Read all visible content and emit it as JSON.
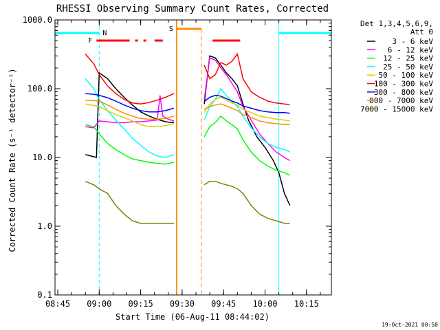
{
  "chart_data": {
    "type": "line",
    "title": "RHESSI Observing Summary Count Rates, Corrected",
    "xlabel": "Start Time (06-Aug-11 08:44:02)",
    "ylabel": "Corrected Count Rate (s⁻¹ detector⁻¹)",
    "y_scale": "log",
    "ylim": [
      0.1,
      1000.0
    ],
    "xlim": [
      "08:44",
      "10:24"
    ],
    "x_ticks": [
      "08:45",
      "09:00",
      "09:15",
      "09:30",
      "09:45",
      "10:00",
      "10:15"
    ],
    "y_ticks": [
      "0.1",
      "1.0",
      "10.0",
      "100.0",
      "1000.0"
    ],
    "legend": {
      "position": "top-right",
      "header": [
        "Det 1,3,4,5,6,9,",
        "Att 0"
      ]
    },
    "timestamp": "19-Oct-2021 00:50",
    "annotations": {
      "night": {
        "label": "N",
        "color": "#00ffff",
        "intervals": [
          [
            "08:44",
            "09:00"
          ],
          [
            "10:05",
            "10:24"
          ]
        ]
      },
      "saa": {
        "label": "S",
        "color": "#ff8c00",
        "interval": [
          "09:28",
          "09:37"
        ]
      },
      "flare": {
        "label": "F",
        "color": "#ff0000",
        "intervals": [
          [
            "08:59",
            "09:11"
          ],
          [
            "09:13",
            "09:14"
          ],
          [
            "09:16",
            "09:17"
          ],
          [
            "09:20",
            "09:23"
          ],
          [
            "09:41",
            "09:51"
          ]
        ]
      }
    },
    "series": [
      {
        "name": "3 - 6 keV",
        "color": "#000000",
        "x": [
          "08:55",
          "08:57",
          "08:59",
          "09:00",
          "09:03",
          "09:06",
          "09:09",
          "09:12",
          "09:15",
          "09:18",
          "09:21",
          "09:24",
          "09:27",
          "09:38",
          "09:40",
          "09:42",
          "09:44",
          "09:46",
          "09:48",
          "09:50",
          "09:52",
          "09:54",
          "09:57",
          "10:00",
          "10:03",
          "10:05",
          "10:07",
          "10:09"
        ],
        "y": [
          11,
          10.5,
          10,
          170,
          140,
          100,
          75,
          58,
          46,
          40,
          36,
          33,
          32,
          60,
          300,
          280,
          220,
          170,
          140,
          110,
          60,
          35,
          20,
          14,
          9,
          6,
          3,
          2
        ]
      },
      {
        "name": "6 - 12 keV",
        "color": "#ff00ff",
        "x": [
          "08:55",
          "08:58",
          "09:00",
          "09:03",
          "09:06",
          "09:09",
          "09:12",
          "09:15",
          "09:18",
          "09:21",
          "09:22",
          "09:23",
          "09:25",
          "09:27",
          "09:38",
          "09:40",
          "09:42",
          "09:44",
          "09:46",
          "09:48",
          "09:50",
          "09:52",
          "09:55",
          "09:58",
          "10:01",
          "10:04",
          "10:07",
          "10:09"
        ],
        "y": [
          28,
          27,
          34,
          33,
          32,
          32,
          33,
          33,
          34,
          35,
          80,
          40,
          36,
          34,
          70,
          280,
          260,
          200,
          160,
          120,
          90,
          55,
          35,
          22,
          16,
          12,
          10,
          9
        ]
      },
      {
        "name": "12 - 25 keV",
        "color": "#00ff00",
        "x": [
          "08:55",
          "08:58",
          "09:00",
          "09:03",
          "09:06",
          "09:09",
          "09:12",
          "09:15",
          "09:18",
          "09:21",
          "09:24",
          "09:27",
          "09:38",
          "09:40",
          "09:42",
          "09:44",
          "09:46",
          "09:48",
          "09:50",
          "09:52",
          "09:55",
          "09:58",
          "10:01",
          "10:04",
          "10:07",
          "10:09"
        ],
        "y": [
          30,
          28,
          22,
          16,
          13,
          11,
          9.5,
          9,
          8.5,
          8.2,
          8,
          8.5,
          20,
          28,
          32,
          40,
          34,
          30,
          26,
          18,
          12,
          9,
          7.5,
          6.5,
          6,
          5.5
        ]
      },
      {
        "name": "25 - 50 keV",
        "color": "#00ffff",
        "x": [
          "08:55",
          "08:58",
          "09:00",
          "09:03",
          "09:06",
          "09:09",
          "09:12",
          "09:15",
          "09:18",
          "09:21",
          "09:24",
          "09:27",
          "09:38",
          "09:40",
          "09:42",
          "09:44",
          "09:46",
          "09:48",
          "09:50",
          "09:52",
          "09:55",
          "09:58",
          "10:01",
          "10:04",
          "10:07",
          "10:09"
        ],
        "y": [
          140,
          100,
          70,
          48,
          35,
          26,
          19,
          15,
          12,
          10.5,
          10,
          11,
          35,
          55,
          70,
          100,
          80,
          65,
          55,
          40,
          27,
          20,
          16,
          14,
          13,
          12
        ]
      },
      {
        "name": "50 - 100 keV",
        "color": "#d4d400",
        "x": [
          "08:55",
          "08:58",
          "09:00",
          "09:03",
          "09:06",
          "09:09",
          "09:12",
          "09:15",
          "09:18",
          "09:21",
          "09:24",
          "09:27",
          "09:38",
          "09:40",
          "09:42",
          "09:44",
          "09:46",
          "09:48",
          "09:50",
          "09:52",
          "09:55",
          "09:58",
          "10:01",
          "10:04",
          "10:07",
          "10:09"
        ],
        "y": [
          60,
          57,
          55,
          48,
          42,
          38,
          34,
          30,
          28,
          28,
          29,
          31,
          45,
          60,
          70,
          75,
          68,
          62,
          58,
          50,
          45,
          40,
          38,
          36,
          35,
          34
        ]
      },
      {
        "name": "100 - 300 keV",
        "color": "#ff0000",
        "x": [
          "08:55",
          "08:58",
          "09:00",
          "09:03",
          "09:06",
          "09:09",
          "09:12",
          "09:15",
          "09:18",
          "09:21",
          "09:24",
          "09:27",
          "09:38",
          "09:40",
          "09:42",
          "09:44",
          "09:46",
          "09:48",
          "09:50",
          "09:52",
          "09:55",
          "09:58",
          "10:01",
          "10:04",
          "10:07",
          "10:09"
        ],
        "y": [
          320,
          230,
          160,
          110,
          85,
          70,
          62,
          60,
          63,
          68,
          75,
          85,
          220,
          140,
          160,
          240,
          220,
          250,
          320,
          140,
          90,
          75,
          66,
          62,
          60,
          58
        ]
      },
      {
        "name": "300 - 800 keV",
        "color": "#0000ff",
        "x": [
          "08:55",
          "08:58",
          "09:00",
          "09:03",
          "09:06",
          "09:09",
          "09:12",
          "09:15",
          "09:18",
          "09:21",
          "09:24",
          "09:27",
          "09:38",
          "09:40",
          "09:42",
          "09:44",
          "09:46",
          "09:48",
          "09:50",
          "09:52",
          "09:55",
          "09:58",
          "10:01",
          "10:04",
          "10:07",
          "10:09"
        ],
        "y": [
          85,
          83,
          80,
          74,
          66,
          58,
          52,
          48,
          46,
          46,
          48,
          52,
          65,
          75,
          80,
          78,
          72,
          66,
          62,
          56,
          52,
          48,
          46,
          45,
          45,
          44
        ]
      },
      {
        "name": "800 - 7000 keV",
        "color": "#ff8c00",
        "x": [
          "08:55",
          "08:58",
          "09:00",
          "09:03",
          "09:06",
          "09:09",
          "09:12",
          "09:15",
          "09:18",
          "09:21",
          "09:24",
          "09:27",
          "09:38",
          "09:40",
          "09:42",
          "09:44",
          "09:46",
          "09:48",
          "09:50",
          "09:52",
          "09:55",
          "09:58",
          "10:01",
          "10:04",
          "10:07",
          "10:09"
        ],
        "y": [
          68,
          67,
          66,
          58,
          50,
          44,
          40,
          37,
          36,
          36,
          37,
          40,
          50,
          55,
          58,
          60,
          56,
          52,
          48,
          42,
          38,
          34,
          32,
          31,
          30,
          30
        ]
      },
      {
        "name": "7000 - 15000 keV",
        "color": "#808000",
        "x": [
          "08:55",
          "08:58",
          "09:00",
          "09:03",
          "09:06",
          "09:09",
          "09:12",
          "09:15",
          "09:18",
          "09:21",
          "09:24",
          "09:27",
          "09:38",
          "09:40",
          "09:42",
          "09:44",
          "09:46",
          "09:48",
          "09:50",
          "09:52",
          "09:55",
          "09:58",
          "10:01",
          "10:04",
          "10:07",
          "10:09"
        ],
        "y": [
          4.5,
          4,
          3.5,
          3,
          2,
          1.5,
          1.2,
          1.1,
          1.1,
          1.1,
          1.1,
          1.1,
          4,
          4.5,
          4.5,
          4.2,
          4,
          3.8,
          3.5,
          3,
          2,
          1.5,
          1.3,
          1.2,
          1.1,
          1.1
        ]
      }
    ]
  }
}
